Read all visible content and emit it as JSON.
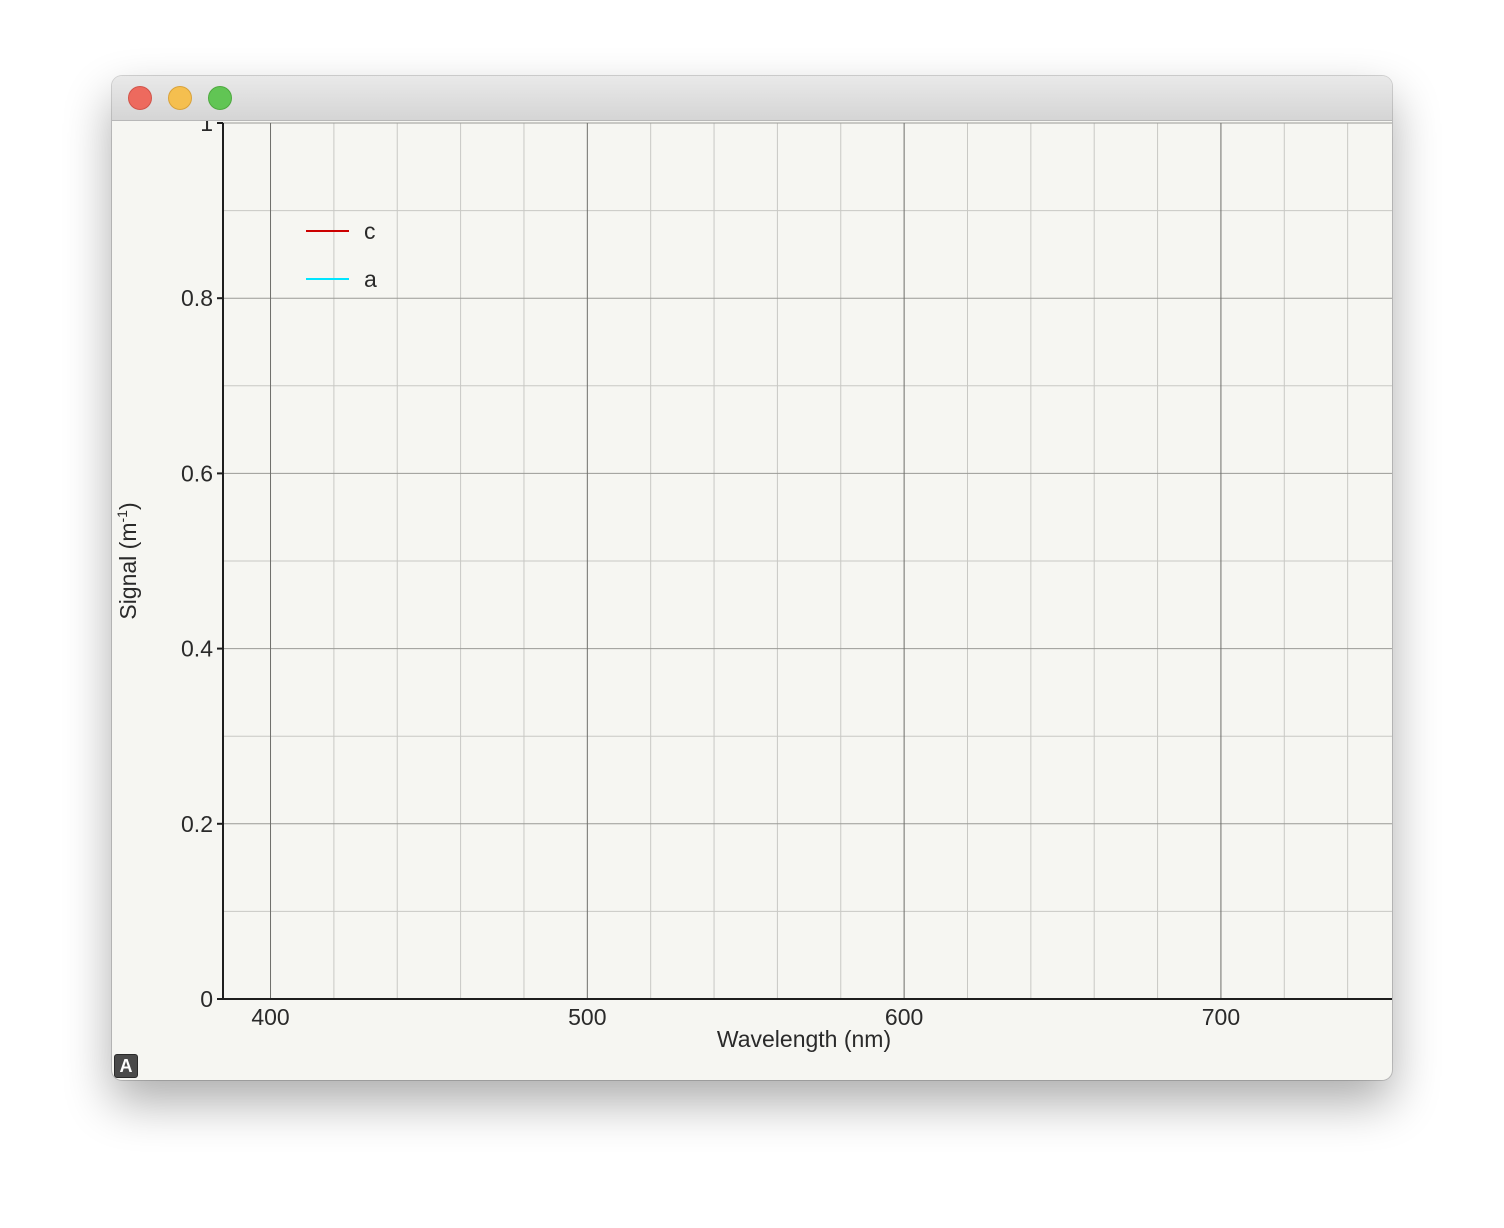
{
  "window": {
    "controls": [
      {
        "name": "close",
        "color": "#ed6a5e"
      },
      {
        "name": "minimize",
        "color": "#f5bf4f"
      },
      {
        "name": "zoom",
        "color": "#61c554"
      }
    ],
    "corner_badge": "A"
  },
  "chart_data": {
    "type": "line",
    "title": "",
    "xlabel": "Wavelength (nm)",
    "ylabel_main": "Signal (m",
    "ylabel_sup": "-1",
    "ylabel_tail": ")",
    "xlim": [
      385,
      754
    ],
    "ylim": [
      0,
      1
    ],
    "x_ticks": [
      400,
      500,
      600,
      700
    ],
    "x_tick_labels": [
      "400",
      "500",
      "600",
      "700"
    ],
    "x_minor_step": 20,
    "y_ticks": [
      0,
      0.2,
      0.4,
      0.6,
      0.8,
      1
    ],
    "y_tick_labels": [
      "0",
      "0.2",
      "0.4",
      "0.6",
      "0.8",
      "1"
    ],
    "y_minor_step": 0.1,
    "grid": true,
    "legend_position": "top-left",
    "series": [
      {
        "name": "c",
        "color": "#cc0000",
        "x": [],
        "y": []
      },
      {
        "name": "a",
        "color": "#00e5ff",
        "x": [],
        "y": []
      }
    ]
  }
}
